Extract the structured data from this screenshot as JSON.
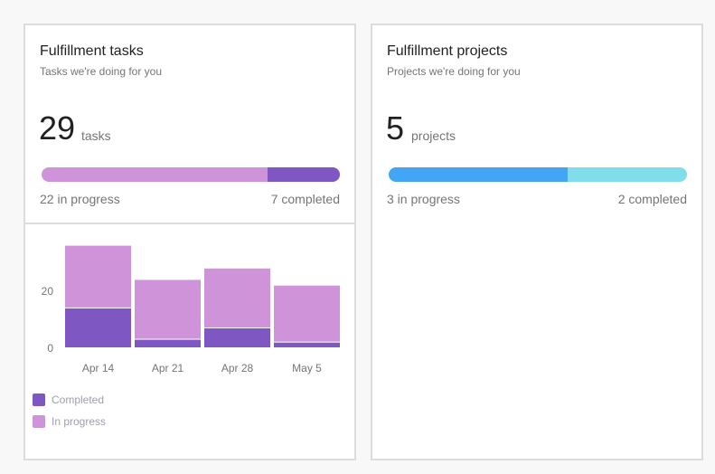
{
  "tasks_card": {
    "title": "Fulfillment tasks",
    "subtitle": "Tasks we're doing for you",
    "count": "29",
    "unit": "tasks",
    "progress": {
      "in_progress": 22,
      "completed": 7,
      "color_in_progress": "#ce93d8",
      "color_completed": "#7e57c2"
    },
    "in_progress_label": "22 in progress",
    "completed_label": "7 completed",
    "legend": {
      "completed": "Completed",
      "in_progress": "In progress"
    }
  },
  "projects_card": {
    "title": "Fulfillment projects",
    "subtitle": "Projects we're doing for you",
    "count": "5",
    "unit": "projects",
    "progress": {
      "in_progress": 3,
      "completed": 2,
      "color_in_progress": "#42a5f5",
      "color_completed": "#80deea"
    },
    "in_progress_label": "3 in progress",
    "completed_label": "2 completed"
  },
  "chart_data": {
    "type": "bar",
    "stacked": true,
    "categories": [
      "Apr 14",
      "Apr 21",
      "Apr 28",
      "May 5"
    ],
    "series": [
      {
        "name": "Completed",
        "values": [
          14,
          3,
          7,
          2
        ],
        "color": "#7e57c2"
      },
      {
        "name": "In progress",
        "values": [
          22,
          21,
          21,
          20
        ],
        "color": "#ce93d8"
      }
    ],
    "yticks": [
      0,
      20
    ],
    "ylim": [
      0,
      40
    ],
    "legend": "bottom-left"
  }
}
